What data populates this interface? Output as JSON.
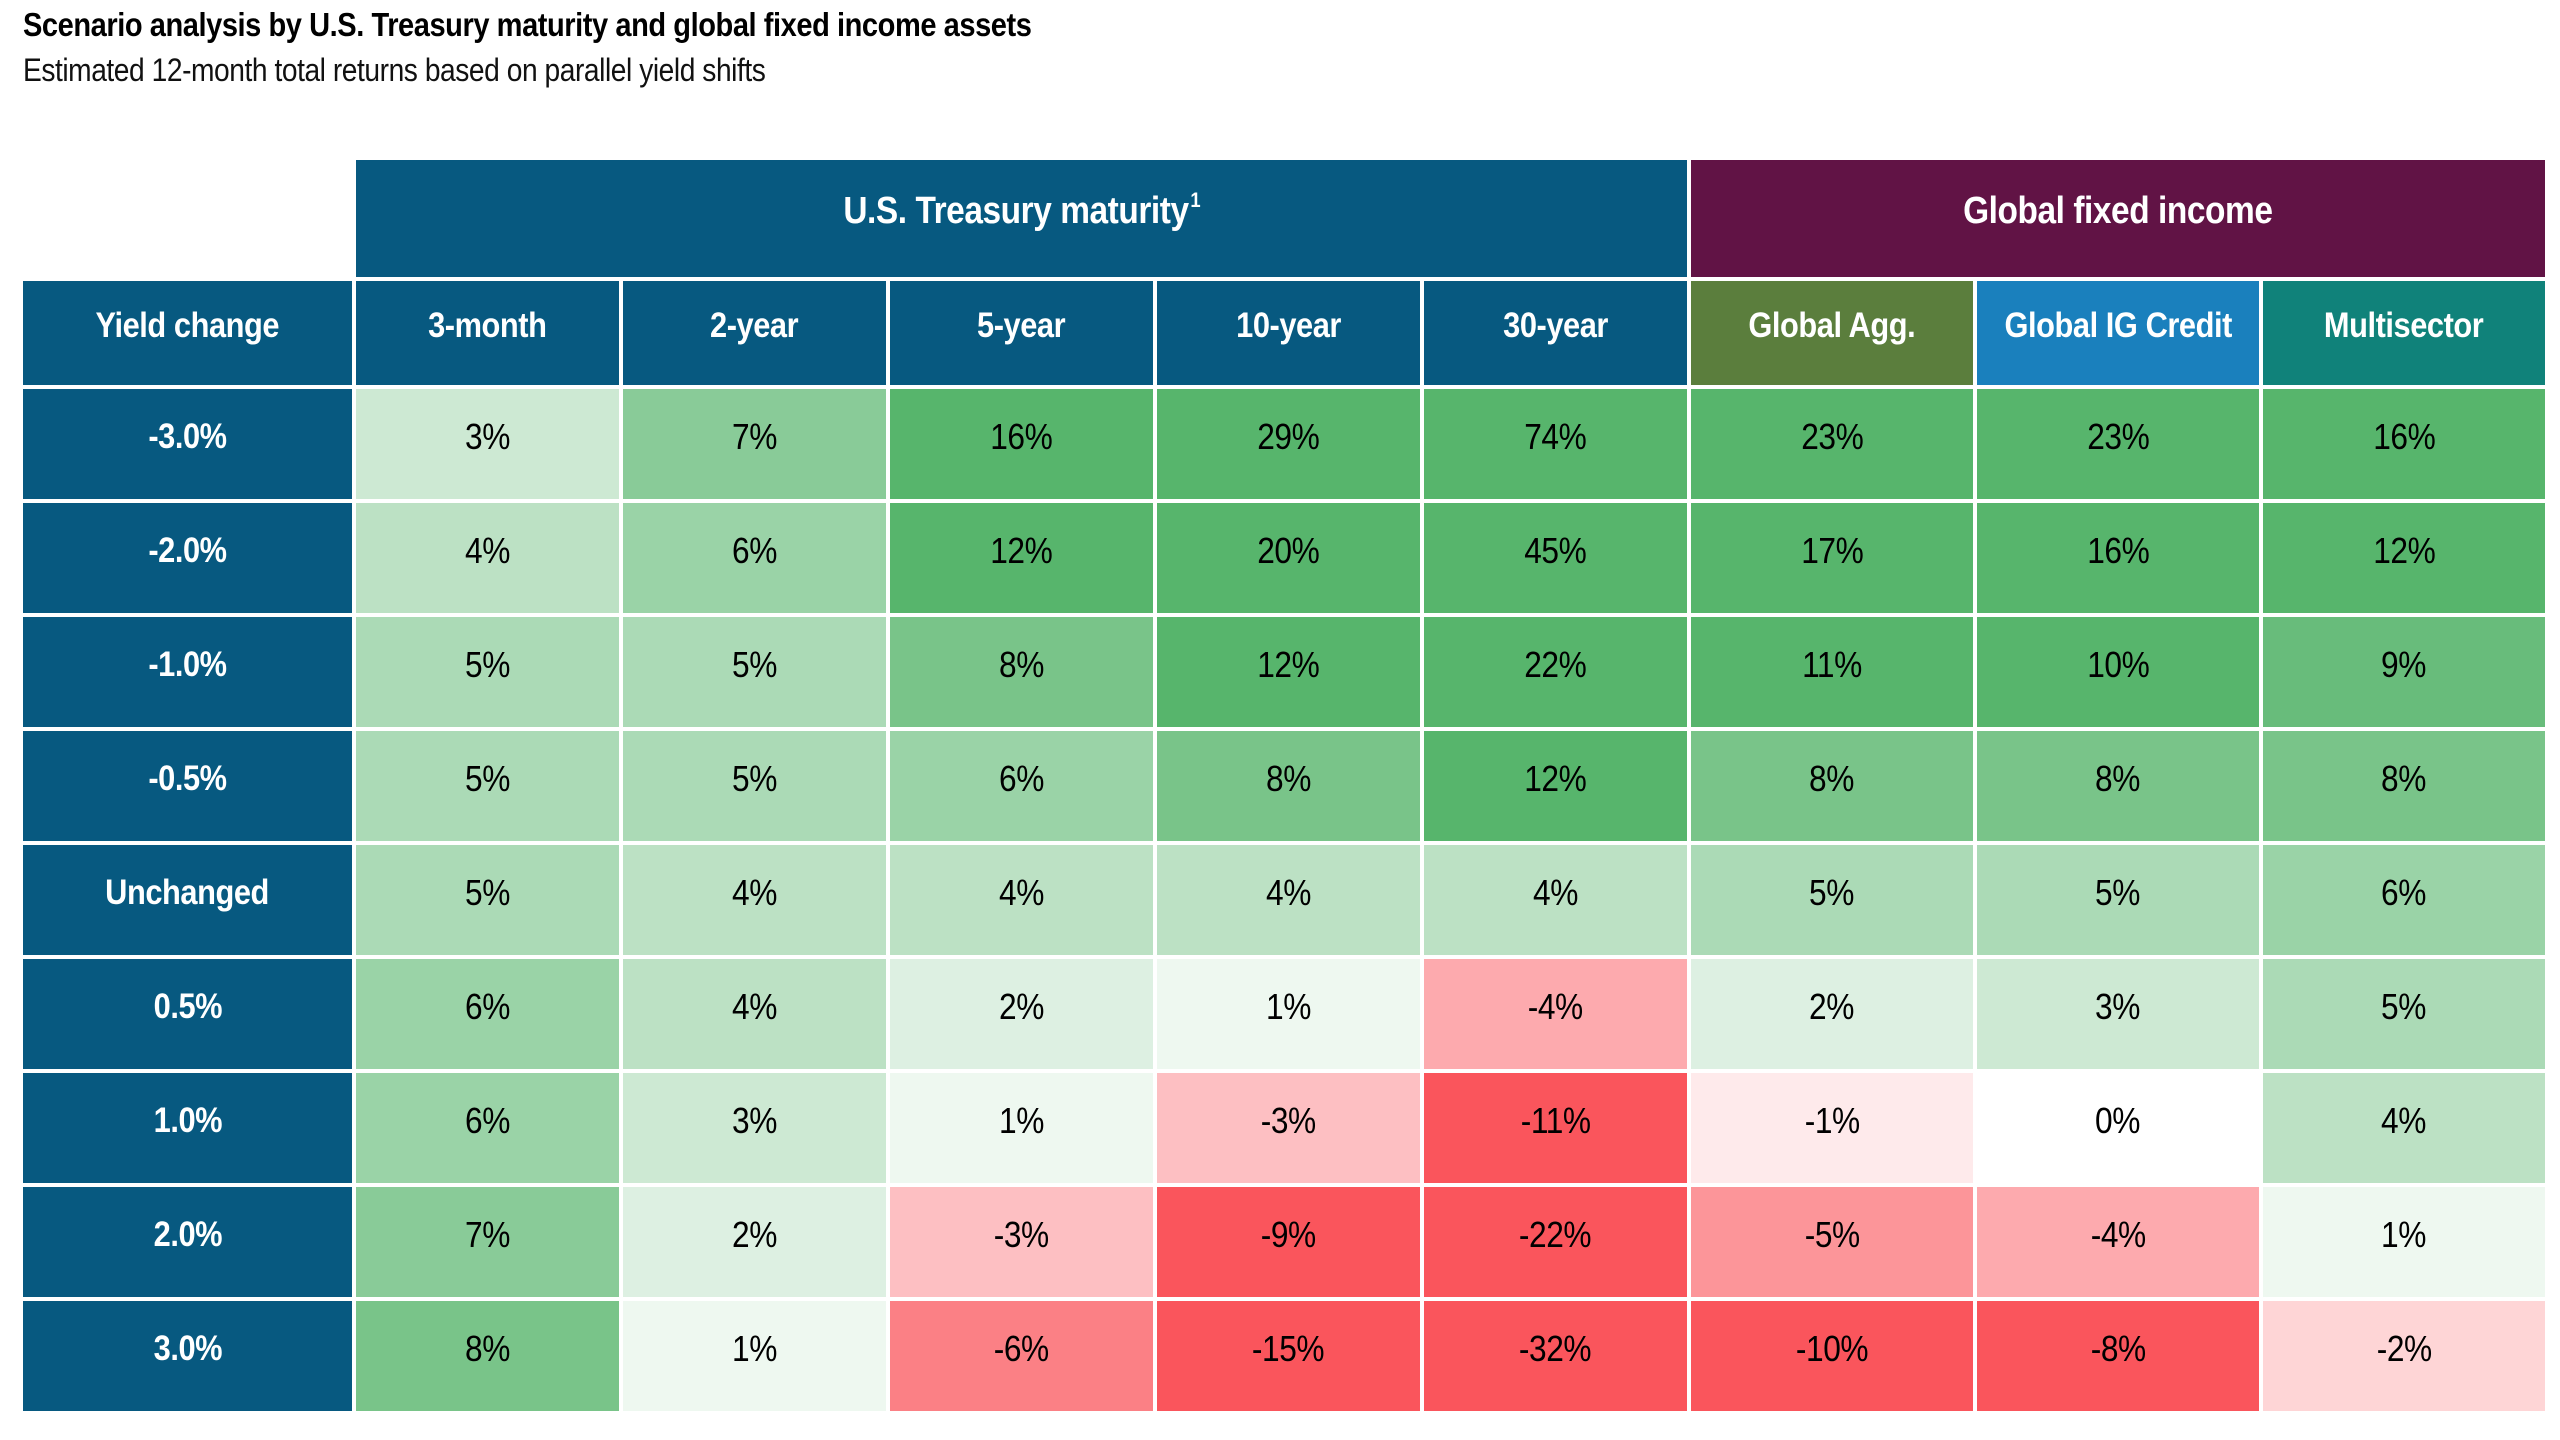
{
  "chart_data": {
    "type": "heatmap",
    "title": "Scenario analysis by U.S. Treasury maturity and global fixed income assets",
    "subtitle": "Estimated 12-month total returns based on parallel yield shifts",
    "row_axis_label": "Yield change",
    "value_suffix": "%",
    "column_groups": [
      {
        "label": "U.S. Treasury maturity",
        "footnote_marker": "1",
        "columns_spanned": 5,
        "color": "#075980"
      },
      {
        "label": "Global fixed income",
        "footnote_marker": "",
        "columns_spanned": 3,
        "color": "#611345"
      }
    ],
    "columns": [
      {
        "label": "3-month",
        "header_color": "#075980"
      },
      {
        "label": "2-year",
        "header_color": "#075980"
      },
      {
        "label": "5-year",
        "header_color": "#075980"
      },
      {
        "label": "10-year",
        "header_color": "#075980"
      },
      {
        "label": "30-year",
        "header_color": "#075980"
      },
      {
        "label": "Global Agg.",
        "header_color": "#5b7e3d"
      },
      {
        "label": "Global IG Credit",
        "header_color": "#1a80bd"
      },
      {
        "label": "Multisector",
        "header_color": "#10827a"
      }
    ],
    "rows": [
      {
        "label": "-3.0%",
        "values": [
          3,
          7,
          16,
          29,
          74,
          23,
          23,
          16
        ]
      },
      {
        "label": "-2.0%",
        "values": [
          4,
          6,
          12,
          20,
          45,
          17,
          16,
          12
        ]
      },
      {
        "label": "-1.0%",
        "values": [
          5,
          5,
          8,
          12,
          22,
          11,
          10,
          9
        ]
      },
      {
        "label": "-0.5%",
        "values": [
          5,
          5,
          6,
          8,
          12,
          8,
          8,
          8
        ]
      },
      {
        "label": "Unchanged",
        "values": [
          5,
          4,
          4,
          4,
          4,
          5,
          5,
          6
        ]
      },
      {
        "label": "0.5%",
        "values": [
          6,
          4,
          2,
          1,
          -4,
          2,
          3,
          5
        ]
      },
      {
        "label": "1.0%",
        "values": [
          6,
          3,
          1,
          -3,
          -11,
          -1,
          0,
          4
        ]
      },
      {
        "label": "2.0%",
        "values": [
          7,
          2,
          -3,
          -9,
          -22,
          -5,
          -4,
          1
        ]
      },
      {
        "label": "3.0%",
        "values": [
          8,
          1,
          -6,
          -15,
          -32,
          -10,
          -8,
          -2
        ]
      }
    ],
    "row_header_color": "#075980",
    "heatmap_scale": {
      "zero_color": "#ffffff",
      "positive_full_color": "#57b56c",
      "positive_full_at": 10,
      "negative_full_color": "#fa555c",
      "negative_full_at": -8
    }
  }
}
